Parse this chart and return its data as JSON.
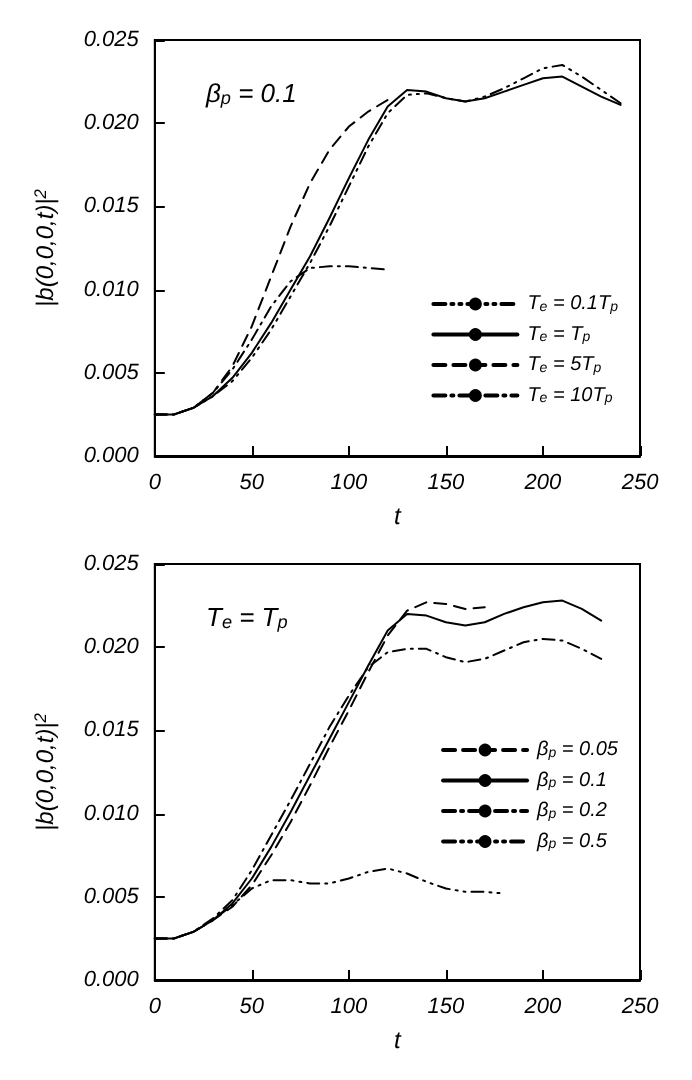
{
  "chart_data": [
    {
      "type": "line",
      "xlabel": "t",
      "ylabel": "|b(0,0,0,t)|$^{2}$",
      "annotations": [
        "β$_{p}$ = 0.1"
      ],
      "xlim": [
        0,
        250
      ],
      "xticks": [
        0,
        50,
        100,
        150,
        200,
        250
      ],
      "ylim": [
        0,
        0.025
      ],
      "yticks": [
        {
          "value": 0,
          "label": "0.000"
        },
        0.005,
        {
          "value": 0.01,
          "label": "0.010"
        },
        0.015,
        {
          "value": 0.02,
          "label": "0.020"
        },
        0.025
      ],
      "grid": false,
      "legend": "bottom right",
      "marker": "none",
      "series": [
        {
          "name": "T$_{e}$ = 0.1T$_{p}$",
          "color": "#000000",
          "line_style": "dashdotdot",
          "x": [
            0,
            10,
            20,
            30,
            40,
            50,
            60,
            70,
            80,
            90,
            100,
            110,
            120,
            130,
            140,
            150,
            160,
            170,
            180,
            190,
            200,
            210,
            220,
            230,
            240
          ],
          "values": [
            0.0025,
            0.0025,
            0.0029,
            0.0036,
            0.0045,
            0.0059,
            0.0076,
            0.0096,
            0.0116,
            0.0138,
            0.0162,
            0.0186,
            0.0206,
            0.0217,
            0.0218,
            0.0215,
            0.0213,
            0.0216,
            0.0221,
            0.0227,
            0.0233,
            0.0235,
            0.0228,
            0.022,
            0.0212
          ]
        },
        {
          "name": "T$_{e}$ = T$_{p}$",
          "color": "#000000",
          "line_style": "solid",
          "x": [
            0,
            10,
            20,
            30,
            40,
            50,
            60,
            70,
            80,
            90,
            100,
            110,
            120,
            130,
            140,
            150,
            160,
            170,
            180,
            190,
            200,
            210,
            220,
            230,
            240
          ],
          "values": [
            0.0025,
            0.0025,
            0.0029,
            0.0036,
            0.0047,
            0.0062,
            0.008,
            0.01,
            0.012,
            0.0143,
            0.0167,
            0.019,
            0.021,
            0.022,
            0.0219,
            0.0215,
            0.0213,
            0.0215,
            0.0219,
            0.0223,
            0.0227,
            0.0228,
            0.0222,
            0.0216,
            0.0211
          ]
        },
        {
          "name": "T$_{e}$ = 5T$_{p}$",
          "color": "#000000",
          "line_style": "dashed",
          "x": [
            0,
            10,
            20,
            30,
            40,
            50,
            60,
            70,
            80,
            90,
            100,
            110,
            120
          ],
          "values": [
            0.0025,
            0.0025,
            0.0029,
            0.0038,
            0.0054,
            0.0078,
            0.0108,
            0.0138,
            0.0164,
            0.0184,
            0.0198,
            0.0207,
            0.0214
          ]
        },
        {
          "name": "T$_{e}$ = 10T$_{p}$",
          "color": "#000000",
          "line_style": "dashdot",
          "x": [
            0,
            10,
            20,
            30,
            40,
            50,
            60,
            70,
            80,
            90,
            100,
            110,
            120
          ],
          "values": [
            0.0025,
            0.0025,
            0.0029,
            0.0038,
            0.0052,
            0.007,
            0.009,
            0.0105,
            0.0113,
            0.0114,
            0.0114,
            0.0113,
            0.0112
          ]
        }
      ]
    },
    {
      "type": "line",
      "xlabel": "t",
      "ylabel": "|b(0,0,0,t)|$^{2}$",
      "annotations": [
        "T$_{e}$ = T$_{p}$"
      ],
      "xlim": [
        0,
        250
      ],
      "xticks": [
        0,
        50,
        100,
        150,
        200,
        250
      ],
      "ylim": [
        0,
        0.025
      ],
      "yticks": [
        {
          "value": 0,
          "label": "0.000"
        },
        0.005,
        {
          "value": 0.01,
          "label": "0.010"
        },
        0.015,
        {
          "value": 0.02,
          "label": "0.020"
        },
        0.025
      ],
      "grid": false,
      "legend": "right",
      "marker": "none",
      "series": [
        {
          "name": "β$_{p}$ = 0.05",
          "color": "#000000",
          "line_style": "dashed",
          "x": [
            0,
            10,
            20,
            30,
            40,
            50,
            60,
            70,
            80,
            90,
            100,
            110,
            120,
            130,
            140,
            150,
            160,
            170
          ],
          "values": [
            0.0025,
            0.0025,
            0.0029,
            0.0036,
            0.0044,
            0.0057,
            0.0075,
            0.0095,
            0.0117,
            0.014,
            0.0162,
            0.0185,
            0.0207,
            0.0222,
            0.0227,
            0.0226,
            0.0223,
            0.0224
          ]
        },
        {
          "name": "β$_{p}$ = 0.1",
          "color": "#000000",
          "line_style": "solid",
          "x": [
            0,
            10,
            20,
            30,
            40,
            50,
            60,
            70,
            80,
            90,
            100,
            110,
            120,
            130,
            140,
            150,
            160,
            170,
            180,
            190,
            200,
            210,
            220,
            230
          ],
          "values": [
            0.0025,
            0.0025,
            0.0029,
            0.0036,
            0.0046,
            0.0061,
            0.008,
            0.0101,
            0.0123,
            0.0145,
            0.0167,
            0.0189,
            0.021,
            0.022,
            0.0219,
            0.0215,
            0.0213,
            0.0215,
            0.022,
            0.0224,
            0.0227,
            0.0228,
            0.0223,
            0.0216
          ]
        },
        {
          "name": "β$_{p}$ = 0.2",
          "color": "#000000",
          "line_style": "dashdot",
          "x": [
            0,
            10,
            20,
            30,
            40,
            50,
            60,
            70,
            80,
            90,
            100,
            110,
            120,
            130,
            140,
            150,
            160,
            170,
            180,
            190,
            200,
            210,
            220,
            230
          ],
          "values": [
            0.0025,
            0.0025,
            0.0029,
            0.0037,
            0.0048,
            0.0066,
            0.0087,
            0.0108,
            0.013,
            0.0152,
            0.0171,
            0.0188,
            0.0197,
            0.0199,
            0.0199,
            0.0194,
            0.0191,
            0.0193,
            0.0198,
            0.0203,
            0.0205,
            0.0204,
            0.0199,
            0.0193
          ]
        },
        {
          "name": "β$_{p}$ = 0.5",
          "color": "#000000",
          "line_style": "dashdotdot",
          "x": [
            0,
            10,
            20,
            30,
            40,
            50,
            60,
            70,
            80,
            90,
            100,
            110,
            120,
            130,
            140,
            150,
            160,
            170,
            180
          ],
          "values": [
            0.0025,
            0.0025,
            0.0029,
            0.0036,
            0.0045,
            0.0055,
            0.006,
            0.006,
            0.0058,
            0.0058,
            0.0061,
            0.0065,
            0.0067,
            0.0064,
            0.0059,
            0.0055,
            0.0053,
            0.0053,
            0.0052
          ]
        }
      ]
    }
  ]
}
